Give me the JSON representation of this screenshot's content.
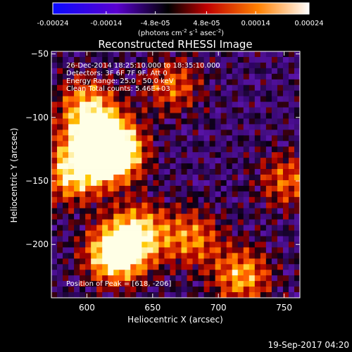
{
  "colorbar": {
    "ticks": [
      "-0.00024",
      "-0.00014",
      "-4.8e-05",
      "4.8e-05",
      "0.00014",
      "0.00024"
    ],
    "ticks_values": [
      -0.00024,
      -0.00014,
      -4.8e-05,
      4.8e-05,
      0.00014,
      0.00024
    ],
    "range": [
      -0.00024,
      0.00024
    ],
    "unit_prefix": "(photons cm",
    "unit_exp1": "-2",
    "unit_mid": " s",
    "unit_exp2": "-1",
    "unit_suffix": " asec",
    "unit_exp3": "-2",
    "unit_close": ")"
  },
  "chart_data": {
    "type": "heatmap",
    "title": "Reconstructed RHESSI Image",
    "xlabel": "Heliocentric X (arcsec)",
    "ylabel": "Heliocentric Y (arcsec)",
    "xlim": [
      573,
      762
    ],
    "ylim": [
      -242,
      -48
    ],
    "xticks": [
      600,
      650,
      700,
      750
    ],
    "yticks": [
      -50,
      -100,
      -150,
      -200
    ],
    "xtick_labels": [
      "600",
      "650",
      "700",
      "750"
    ],
    "ytick_labels": [
      "−50",
      "−100",
      "−150",
      "−200"
    ],
    "annotations": [
      "26-Dec-2014 18:25:10.000 to 18:35:10.000",
      "Detectors: 3F 6F 7F 9F, Att 0",
      "Energy Range: 25.0 - 50.0 keV",
      "Clean    Total counts: 5.46E+03"
    ],
    "peak_label": "Position of Peak = [618, -206]",
    "peak": [
      618,
      -206
    ],
    "hotspots": [
      {
        "x": 620,
        "y": -128,
        "value": 1.0
      },
      {
        "x": 607,
        "y": -118,
        "value": 0.8
      },
      {
        "x": 588,
        "y": -145,
        "value": 0.65
      },
      {
        "x": 622,
        "y": -208,
        "value": 0.95
      },
      {
        "x": 640,
        "y": -190,
        "value": 0.6
      },
      {
        "x": 680,
        "y": -195,
        "value": 0.5
      },
      {
        "x": 718,
        "y": -225,
        "value": 0.6
      },
      {
        "x": 752,
        "y": -150,
        "value": 0.45
      },
      {
        "x": 665,
        "y": -75,
        "value": 0.45
      },
      {
        "x": 600,
        "y": -90,
        "value": 0.55
      }
    ]
  },
  "footer": {
    "timestamp": "19-Sep-2017 04:20"
  }
}
